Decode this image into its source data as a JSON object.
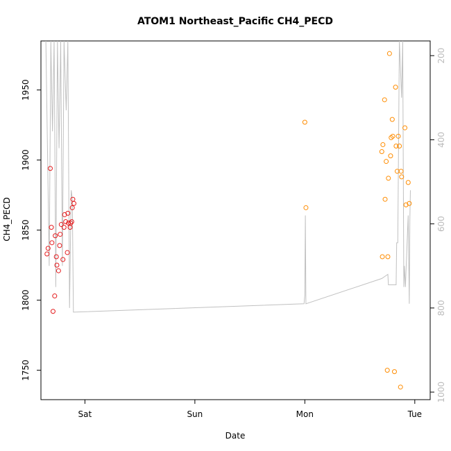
{
  "chart_data": {
    "type": "scatter",
    "title": "ATOM1 Northeast_Pacific CH4_PECD",
    "xlabel": "Date",
    "ylabel": "CH4_PECD",
    "x_ticks": [
      "Sat",
      "Sun",
      "Mon",
      "Tue"
    ],
    "x_tick_days": [
      1,
      2,
      3,
      4
    ],
    "xlim_days": [
      0.6,
      4.14
    ],
    "ylim": [
      1729,
      1985
    ],
    "y_ticks": [
      1750,
      1800,
      1850,
      1900,
      1950
    ],
    "right_axis": {
      "ticks": [
        200,
        400,
        600,
        800,
        1000
      ],
      "ylim": [
        1018,
        165
      ],
      "color": "#bbbbbb"
    },
    "series": [
      {
        "color": "#e41a1c",
        "points": [
          [
            0.655,
            1833
          ],
          [
            0.665,
            1837
          ],
          [
            0.685,
            1894
          ],
          [
            0.695,
            1852
          ],
          [
            0.7,
            1841
          ],
          [
            0.71,
            1792
          ],
          [
            0.725,
            1803
          ],
          [
            0.73,
            1846
          ],
          [
            0.74,
            1831
          ],
          [
            0.745,
            1825
          ],
          [
            0.76,
            1821
          ],
          [
            0.77,
            1839
          ],
          [
            0.775,
            1847
          ],
          [
            0.785,
            1854
          ],
          [
            0.8,
            1829
          ],
          [
            0.81,
            1852
          ],
          [
            0.815,
            1861
          ],
          [
            0.825,
            1856
          ],
          [
            0.84,
            1834
          ],
          [
            0.845,
            1862
          ],
          [
            0.85,
            1855
          ],
          [
            0.865,
            1852
          ],
          [
            0.87,
            1855
          ],
          [
            0.88,
            1856
          ],
          [
            0.885,
            1866
          ],
          [
            0.89,
            1872
          ],
          [
            0.9,
            1869
          ]
        ]
      },
      {
        "color": "#ff8c00",
        "points": [
          [
            3.0,
            1927
          ],
          [
            3.01,
            1866
          ],
          [
            3.7,
            1906
          ],
          [
            3.705,
            1831
          ],
          [
            3.71,
            1911
          ],
          [
            3.725,
            1943
          ],
          [
            3.73,
            1872
          ],
          [
            3.74,
            1899
          ],
          [
            3.75,
            1750
          ],
          [
            3.755,
            1831
          ],
          [
            3.76,
            1887
          ],
          [
            3.77,
            1976
          ],
          [
            3.78,
            1903
          ],
          [
            3.785,
            1916
          ],
          [
            3.795,
            1929
          ],
          [
            3.8,
            1917
          ],
          [
            3.815,
            1749
          ],
          [
            3.825,
            1952
          ],
          [
            3.83,
            1910
          ],
          [
            3.84,
            1892
          ],
          [
            3.85,
            1917
          ],
          [
            3.86,
            1910
          ],
          [
            3.87,
            1738
          ],
          [
            3.875,
            1892
          ],
          [
            3.88,
            1888
          ],
          [
            3.91,
            1923
          ],
          [
            3.92,
            1868
          ],
          [
            3.94,
            1884
          ],
          [
            3.95,
            1869
          ]
        ]
      }
    ],
    "line_series": {
      "color": "#c0c0c0",
      "axis": "right",
      "points": [
        [
          0.645,
          165
        ],
        [
          0.66,
          430
        ],
        [
          0.675,
          700
        ],
        [
          0.69,
          165
        ],
        [
          0.705,
          380
        ],
        [
          0.72,
          165
        ],
        [
          0.735,
          750
        ],
        [
          0.75,
          165
        ],
        [
          0.765,
          420
        ],
        [
          0.78,
          165
        ],
        [
          0.795,
          700
        ],
        [
          0.81,
          165
        ],
        [
          0.83,
          330
        ],
        [
          0.845,
          165
        ],
        [
          0.86,
          800
        ],
        [
          0.875,
          520
        ],
        [
          0.885,
          540
        ],
        [
          0.895,
          810
        ],
        [
          2.993,
          790
        ],
        [
          3.0,
          770
        ],
        [
          3.005,
          580
        ],
        [
          3.01,
          790
        ],
        [
          3.7,
          730
        ],
        [
          3.755,
          720
        ],
        [
          3.76,
          745
        ],
        [
          3.83,
          745
        ],
        [
          3.835,
          645
        ],
        [
          3.845,
          645
        ],
        [
          3.86,
          165
        ],
        [
          3.88,
          300
        ],
        [
          3.89,
          165
        ],
        [
          3.9,
          750
        ],
        [
          3.905,
          700
        ],
        [
          3.915,
          750
        ],
        [
          3.925,
          680
        ],
        [
          3.94,
          580
        ],
        [
          3.95,
          790
        ],
        [
          3.955,
          590
        ],
        [
          3.96,
          520
        ]
      ]
    }
  }
}
